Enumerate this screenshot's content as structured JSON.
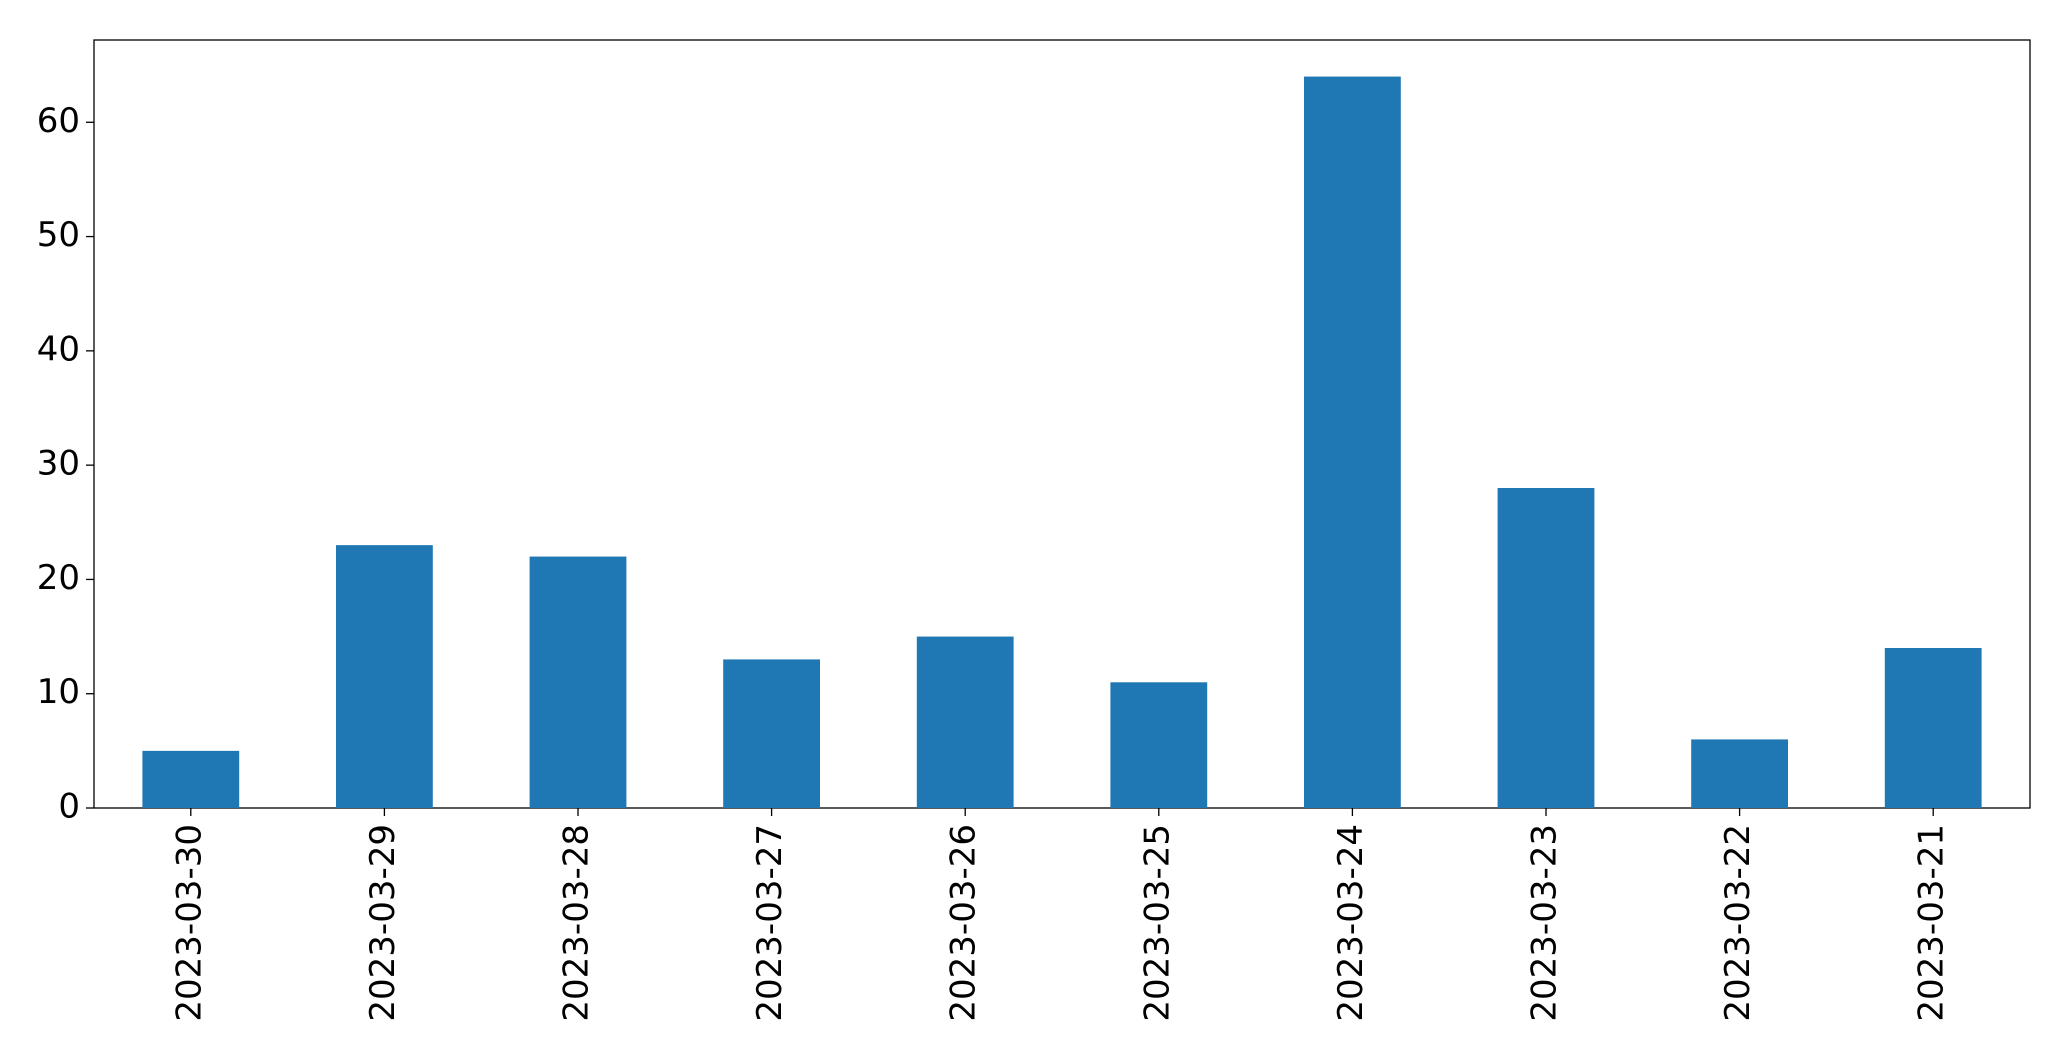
{
  "chart_data": {
    "type": "bar",
    "categories": [
      "2023-03-30",
      "2023-03-29",
      "2023-03-28",
      "2023-03-27",
      "2023-03-26",
      "2023-03-25",
      "2023-03-24",
      "2023-03-23",
      "2023-03-22",
      "2023-03-21"
    ],
    "values": [
      5,
      23,
      22,
      13,
      15,
      11,
      64,
      28,
      6,
      14
    ],
    "color": "#1f77b4",
    "ylim": [
      0,
      67.2
    ],
    "yticks": [
      0,
      10,
      20,
      30,
      40,
      50,
      60
    ],
    "grid": false
  }
}
